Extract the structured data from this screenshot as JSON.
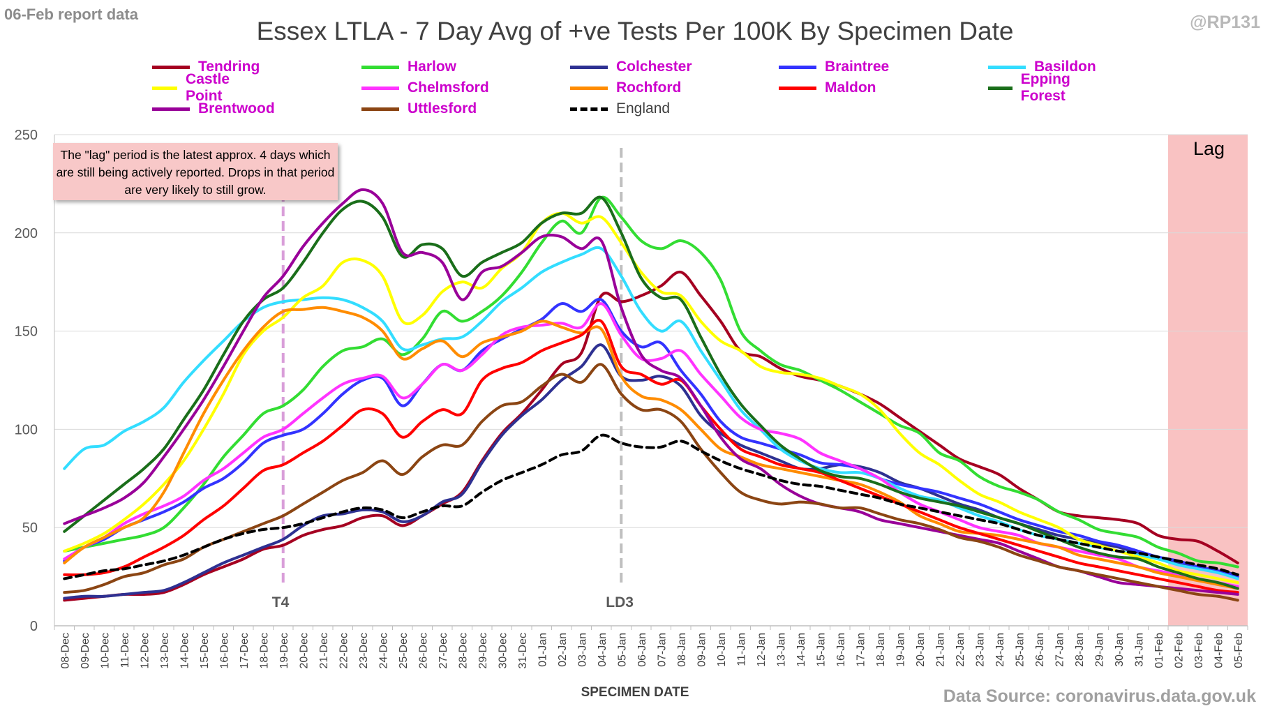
{
  "header": {
    "report_date": "06-Feb report data",
    "handle": "@RP131",
    "source": "Data Source: coronavirus.data.gov.uk"
  },
  "annotations": {
    "note": "The \"lag\" period is the latest approx. 4 days which are still being actively reported. Drops in that period are very likely to still grow.",
    "lag_label": "Lag",
    "t4_label": "T4",
    "ld3_label": "LD3"
  },
  "chart_data": {
    "type": "line",
    "title": "Essex LTLA - 7 Day Avg of +ve Tests Per 100K By Specimen Date",
    "xlabel": "SPECIMEN DATE",
    "ylabel": "",
    "ylim": [
      0,
      250
    ],
    "yticks": [
      0,
      50,
      100,
      150,
      200,
      250
    ],
    "grid": "horizontal",
    "legend_position": "top",
    "lag_region": [
      "02-Feb",
      "05-Feb"
    ],
    "vertical_markers": [
      {
        "label": "T4",
        "x": "19-Dec",
        "color": "#d99ed9"
      },
      {
        "label": "LD3",
        "x": "05-Jan",
        "color": "#bfbfbf"
      }
    ],
    "x": [
      "08-Dec",
      "09-Dec",
      "10-Dec",
      "11-Dec",
      "12-Dec",
      "13-Dec",
      "14-Dec",
      "15-Dec",
      "16-Dec",
      "17-Dec",
      "18-Dec",
      "19-Dec",
      "20-Dec",
      "21-Dec",
      "22-Dec",
      "23-Dec",
      "24-Dec",
      "25-Dec",
      "26-Dec",
      "27-Dec",
      "28-Dec",
      "29-Dec",
      "30-Dec",
      "31-Dec",
      "01-Jan",
      "02-Jan",
      "03-Jan",
      "04-Jan",
      "05-Jan",
      "06-Jan",
      "07-Jan",
      "08-Jan",
      "09-Jan",
      "10-Jan",
      "11-Jan",
      "12-Jan",
      "13-Jan",
      "14-Jan",
      "15-Jan",
      "16-Jan",
      "17-Jan",
      "18-Jan",
      "19-Jan",
      "20-Jan",
      "21-Jan",
      "22-Jan",
      "23-Jan",
      "24-Jan",
      "25-Jan",
      "26-Jan",
      "27-Jan",
      "28-Jan",
      "29-Jan",
      "30-Jan",
      "31-Jan",
      "01-Feb",
      "02-Feb",
      "03-Feb",
      "04-Feb",
      "05-Feb"
    ],
    "series": [
      {
        "name": "Tendring",
        "color": "#a50021",
        "dashed": false,
        "values": [
          13,
          14,
          15,
          16,
          16,
          17,
          21,
          26,
          30,
          34,
          39,
          41,
          46,
          49,
          51,
          55,
          56,
          51,
          56,
          62,
          68,
          84,
          98,
          108,
          120,
          133,
          139,
          168,
          165,
          168,
          173,
          180,
          168,
          155,
          140,
          137,
          131,
          127,
          125,
          122,
          118,
          113,
          106,
          99,
          92,
          85,
          81,
          77,
          70,
          64,
          58,
          56,
          55,
          54,
          52,
          46,
          44,
          43,
          38,
          32
        ]
      },
      {
        "name": "Harlow",
        "color": "#33dd33",
        "dashed": false,
        "values": [
          38,
          40,
          42,
          44,
          46,
          50,
          60,
          72,
          86,
          97,
          108,
          112,
          120,
          132,
          140,
          142,
          146,
          138,
          146,
          160,
          155,
          160,
          168,
          180,
          195,
          206,
          200,
          218,
          208,
          196,
          192,
          196,
          190,
          176,
          150,
          140,
          133,
          130,
          125,
          120,
          114,
          108,
          102,
          98,
          88,
          84,
          76,
          71,
          68,
          64,
          58,
          54,
          49,
          47,
          45,
          40,
          37,
          33,
          32,
          30
        ]
      },
      {
        "name": "Colchester",
        "color": "#2e3192",
        "dashed": false,
        "values": [
          14,
          15,
          15,
          16,
          17,
          18,
          22,
          27,
          32,
          36,
          40,
          44,
          51,
          56,
          57,
          59,
          58,
          53,
          56,
          63,
          67,
          83,
          97,
          107,
          115,
          125,
          132,
          143,
          127,
          125,
          127,
          122,
          107,
          98,
          92,
          88,
          84,
          80,
          80,
          82,
          81,
          78,
          73,
          70,
          66,
          62,
          59,
          55,
          52,
          49,
          46,
          44,
          42,
          40,
          37,
          35,
          32,
          30,
          28,
          26
        ]
      },
      {
        "name": "Braintree",
        "color": "#3333ff",
        "dashed": false,
        "values": [
          33,
          40,
          44,
          50,
          54,
          58,
          63,
          70,
          75,
          83,
          93,
          97,
          100,
          108,
          118,
          125,
          126,
          112,
          123,
          133,
          130,
          140,
          146,
          151,
          156,
          164,
          160,
          166,
          150,
          142,
          144,
          130,
          118,
          104,
          96,
          93,
          90,
          87,
          83,
          82,
          80,
          75,
          72,
          70,
          68,
          65,
          62,
          58,
          54,
          51,
          48,
          46,
          43,
          41,
          38,
          35,
          33,
          30,
          28,
          25
        ]
      },
      {
        "name": "Basildon",
        "color": "#33ddff",
        "dashed": false,
        "values": [
          80,
          90,
          92,
          99,
          104,
          111,
          124,
          135,
          145,
          155,
          162,
          165,
          166,
          167,
          166,
          162,
          155,
          141,
          143,
          146,
          147,
          155,
          165,
          172,
          180,
          185,
          189,
          192,
          178,
          160,
          150,
          155,
          140,
          125,
          110,
          100,
          90,
          84,
          80,
          78,
          78,
          75,
          70,
          66,
          64,
          60,
          56,
          53,
          49,
          46,
          44,
          42,
          40,
          38,
          36,
          34,
          31,
          29,
          27,
          24
        ]
      },
      {
        "name": "Castle Point",
        "color": "#ffff00",
        "dashed": false,
        "values": [
          38,
          42,
          47,
          54,
          62,
          72,
          84,
          100,
          118,
          138,
          150,
          157,
          167,
          173,
          185,
          186,
          178,
          155,
          158,
          170,
          175,
          172,
          182,
          190,
          205,
          210,
          205,
          208,
          195,
          180,
          170,
          168,
          155,
          145,
          140,
          132,
          129,
          128,
          126,
          122,
          118,
          110,
          98,
          88,
          82,
          74,
          67,
          63,
          58,
          54,
          50,
          44,
          41,
          38,
          35,
          32,
          28,
          26,
          24,
          22
        ]
      },
      {
        "name": "Chelmsford",
        "color": "#ff33ff",
        "dashed": false,
        "values": [
          34,
          40,
          45,
          52,
          57,
          61,
          66,
          74,
          80,
          88,
          96,
          100,
          108,
          116,
          123,
          126,
          127,
          116,
          123,
          133,
          130,
          138,
          148,
          152,
          153,
          154,
          152,
          164,
          148,
          136,
          136,
          140,
          128,
          117,
          106,
          100,
          98,
          95,
          88,
          84,
          80,
          75,
          68,
          62,
          58,
          54,
          50,
          48,
          46,
          42,
          40,
          38,
          36,
          34,
          30,
          28,
          26,
          24,
          22,
          20
        ]
      },
      {
        "name": "Rochford",
        "color": "#ff8c00",
        "dashed": false,
        "values": [
          32,
          40,
          45,
          50,
          55,
          68,
          88,
          108,
          125,
          140,
          152,
          160,
          161,
          162,
          160,
          157,
          150,
          136,
          141,
          145,
          137,
          144,
          147,
          150,
          155,
          152,
          149,
          151,
          127,
          117,
          115,
          110,
          100,
          90,
          86,
          82,
          80,
          78,
          76,
          74,
          72,
          68,
          63,
          56,
          52,
          48,
          47,
          46,
          44,
          42,
          40,
          36,
          34,
          32,
          30,
          27,
          25,
          23,
          21,
          19
        ]
      },
      {
        "name": "Maldon",
        "color": "#ff0000",
        "dashed": false,
        "values": [
          26,
          26,
          27,
          30,
          35,
          40,
          46,
          54,
          61,
          70,
          79,
          82,
          88,
          94,
          102,
          110,
          108,
          96,
          104,
          110,
          108,
          125,
          131,
          134,
          140,
          144,
          148,
          155,
          132,
          128,
          123,
          125,
          112,
          100,
          90,
          86,
          82,
          80,
          78,
          74,
          70,
          66,
          62,
          58,
          54,
          50,
          47,
          44,
          41,
          38,
          35,
          32,
          30,
          28,
          26,
          24,
          22,
          20,
          18,
          17
        ]
      },
      {
        "name": "Epping Forest",
        "color": "#1a6e1a",
        "dashed": false,
        "values": [
          48,
          56,
          64,
          72,
          80,
          90,
          105,
          120,
          138,
          155,
          166,
          172,
          185,
          200,
          212,
          216,
          208,
          188,
          194,
          192,
          178,
          185,
          190,
          195,
          205,
          210,
          210,
          218,
          200,
          177,
          167,
          166,
          147,
          128,
          113,
          102,
          92,
          85,
          79,
          76,
          75,
          72,
          68,
          65,
          63,
          61,
          58,
          55,
          52,
          48,
          44,
          40,
          37,
          35,
          34,
          30,
          27,
          24,
          22,
          19
        ]
      },
      {
        "name": "Brentwood",
        "color": "#990099",
        "dashed": false,
        "values": [
          52,
          56,
          60,
          65,
          73,
          86,
          100,
          115,
          132,
          150,
          167,
          178,
          193,
          205,
          215,
          222,
          215,
          190,
          190,
          185,
          166,
          180,
          183,
          190,
          198,
          198,
          192,
          196,
          162,
          138,
          130,
          126,
          112,
          96,
          85,
          80,
          72,
          66,
          62,
          60,
          58,
          54,
          52,
          50,
          48,
          46,
          44,
          42,
          38,
          34,
          30,
          28,
          25,
          22,
          21,
          20,
          19,
          18,
          17,
          16
        ]
      },
      {
        "name": "Uttlesford",
        "color": "#8b4513",
        "dashed": false,
        "values": [
          17,
          18,
          21,
          25,
          27,
          31,
          34,
          40,
          44,
          48,
          52,
          56,
          62,
          68,
          74,
          78,
          84,
          77,
          86,
          92,
          92,
          104,
          112,
          114,
          122,
          128,
          124,
          133,
          118,
          110,
          110,
          104,
          90,
          78,
          68,
          64,
          62,
          63,
          62,
          60,
          60,
          57,
          54,
          52,
          49,
          45,
          43,
          40,
          36,
          33,
          30,
          28,
          26,
          24,
          22,
          20,
          18,
          16,
          15,
          13
        ]
      },
      {
        "name": "England",
        "color": "#000000",
        "dashed": true,
        "values": [
          24,
          26,
          28,
          29,
          31,
          33,
          36,
          40,
          44,
          47,
          49,
          50,
          52,
          55,
          58,
          60,
          59,
          55,
          58,
          61,
          61,
          68,
          74,
          78,
          82,
          87,
          89,
          97,
          93,
          91,
          91,
          94,
          89,
          84,
          80,
          77,
          74,
          72,
          71,
          69,
          67,
          65,
          62,
          60,
          58,
          56,
          54,
          52,
          49,
          46,
          44,
          42,
          40,
          38,
          37,
          35,
          33,
          31,
          29,
          26
        ]
      }
    ]
  }
}
